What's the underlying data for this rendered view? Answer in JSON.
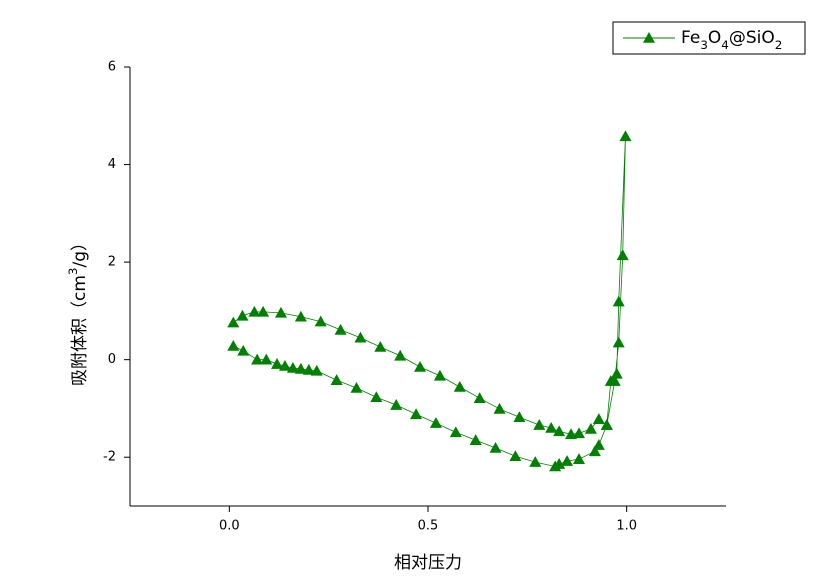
{
  "chart_data": {
    "type": "line",
    "x_label": "相对压力",
    "y_label": "吸附体积（cm3/g）",
    "xlim": [
      -0.25,
      1.25
    ],
    "xticks": [
      {
        "value": 0,
        "label": "0.0"
      },
      {
        "value": 0.5,
        "label": "0.5"
      },
      {
        "value": 1,
        "label": "1.0"
      }
    ],
    "ylim": [
      -3,
      6
    ],
    "yticks": [
      -2,
      0,
      2,
      4,
      6
    ],
    "legend": "top-right",
    "series": [
      {
        "name": "Fe3O4@SiO2",
        "color": "#008000",
        "x": [
          0.01,
          0.035,
          0.07,
          0.093,
          0.12,
          0.14,
          0.16,
          0.18,
          0.2,
          0.22,
          0.27,
          0.32,
          0.37,
          0.42,
          0.47,
          0.52,
          0.57,
          0.62,
          0.67,
          0.72,
          0.77,
          0.82,
          0.83,
          0.85,
          0.88,
          0.92,
          0.93,
          0.95,
          0.97,
          0.98,
          0.99,
          0.997,
          0.98,
          0.975,
          0.96,
          0.95,
          0.93,
          0.91,
          0.88,
          0.86,
          0.83,
          0.81,
          0.78,
          0.73,
          0.68,
          0.63,
          0.58,
          0.53,
          0.48,
          0.43,
          0.38,
          0.33,
          0.28,
          0.23,
          0.18,
          0.13,
          0.085,
          0.063,
          0.033,
          0.01
        ],
        "values": [
          0.28,
          0.18,
          0.0,
          0.0,
          -0.09,
          -0.13,
          -0.17,
          -0.19,
          -0.21,
          -0.23,
          -0.42,
          -0.58,
          -0.77,
          -0.93,
          -1.12,
          -1.3,
          -1.49,
          -1.65,
          -1.81,
          -1.98,
          -2.1,
          -2.19,
          -2.14,
          -2.08,
          -2.04,
          -1.88,
          -1.75,
          -1.34,
          -0.44,
          0.35,
          2.14,
          4.58,
          1.19,
          -0.29,
          -0.44,
          -1.34,
          -1.22,
          -1.42,
          -1.51,
          -1.53,
          -1.47,
          -1.4,
          -1.34,
          -1.18,
          -1.01,
          -0.79,
          -0.56,
          -0.33,
          -0.15,
          0.08,
          0.26,
          0.45,
          0.61,
          0.78,
          0.88,
          0.96,
          0.98,
          0.98,
          0.9,
          0.76
        ]
      }
    ]
  }
}
